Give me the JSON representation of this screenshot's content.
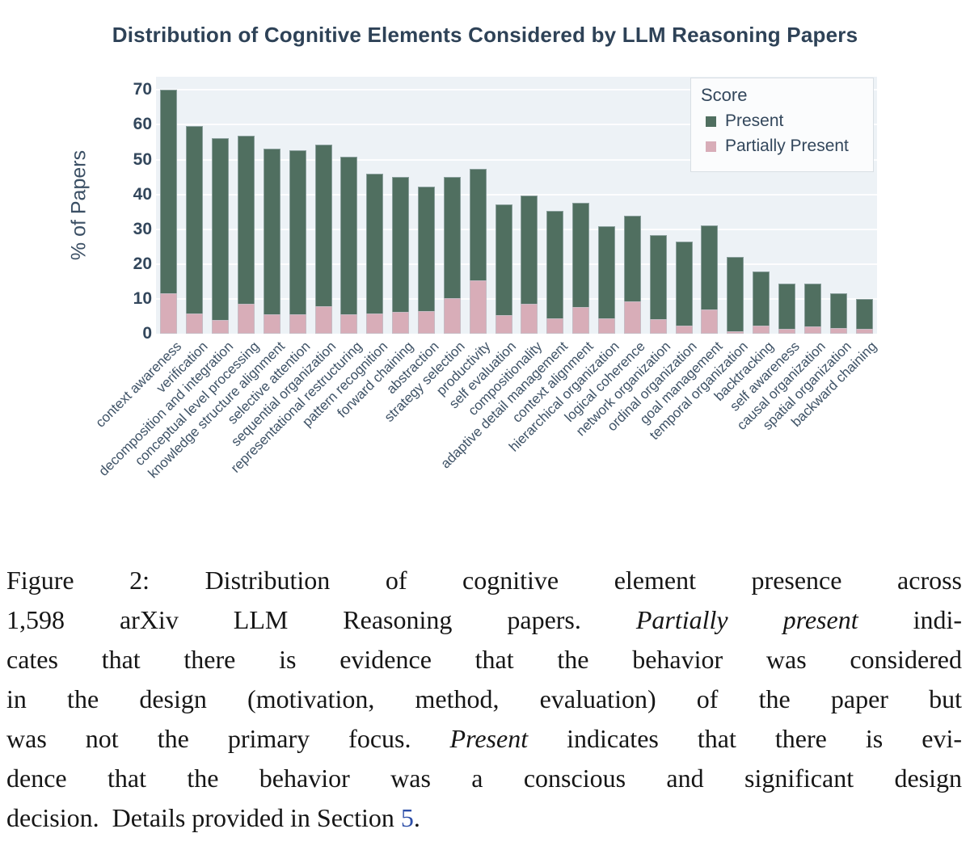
{
  "chart_data": {
    "type": "bar",
    "stacked": true,
    "title": "Distribution of Cognitive Elements Considered by LLM Reasoning Papers",
    "xlabel": "",
    "ylabel": "% of Papers",
    "ylim": [
      0,
      70
    ],
    "yticks": [
      0,
      10,
      20,
      30,
      40,
      50,
      60,
      70
    ],
    "grid": "horizontal",
    "legend_title": "Score",
    "legend_position": "top-right",
    "stack_order_bottom_to_top": [
      "Partially Present",
      "Present"
    ],
    "categories": [
      "context awareness",
      "verification",
      "decomposition and integration",
      "conceptual level processing",
      "knowledge structure alignment",
      "selective attention",
      "sequential organization",
      "representational restructuring",
      "pattern recognition",
      "forward chaining",
      "abstraction",
      "strategy selection",
      "productivity",
      "self evaluation",
      "compositionality",
      "adaptive detail management",
      "context alignment",
      "hierarchical organization",
      "logical coherence",
      "network organization",
      "ordinal organization",
      "goal management",
      "temporal organization",
      "backtracking",
      "self awareness",
      "causal organization",
      "spatial organization",
      "backward chaining"
    ],
    "series": [
      {
        "name": "Present",
        "color": "#506f60",
        "values": [
          58.5,
          53.8,
          52.2,
          48.4,
          47.7,
          47.2,
          46.4,
          45.4,
          40.2,
          38.9,
          35.6,
          34.9,
          32.1,
          31.7,
          31.2,
          30.8,
          30.0,
          26.6,
          24.6,
          24.3,
          24.2,
          24.2,
          21.5,
          15.4,
          13.0,
          12.3,
          10.0,
          8.4
        ]
      },
      {
        "name": "Partially Present",
        "color": "#d8adb8",
        "values": [
          11.5,
          5.8,
          3.9,
          8.5,
          5.5,
          5.5,
          7.8,
          5.5,
          5.8,
          6.2,
          6.6,
          10.2,
          15.3,
          5.4,
          8.5,
          4.4,
          7.6,
          4.3,
          9.3,
          4.1,
          2.3,
          7.0,
          0.6,
          2.4,
          1.5,
          2.2,
          1.6,
          1.5
        ]
      }
    ]
  },
  "colors": {
    "present": "#506f60",
    "partially_present": "#d8adb8",
    "title_text": "#2e4257",
    "axis_text": "#33475c",
    "plot_background": "#edf2f6",
    "section_link": "#2e4fa8"
  },
  "caption": {
    "figure_label": "Figure 2:",
    "lines": [
      [
        {
          "t": "Figure 2:  Distribution of cognitive element presence across"
        }
      ],
      [
        {
          "t": "1,598 arXiv LLM Reasoning papers.  "
        },
        {
          "t": "Partially present",
          "style": "italic"
        },
        {
          "t": " indi-"
        }
      ],
      [
        {
          "t": "cates that there is evidence that the behavior was considered"
        }
      ],
      [
        {
          "t": "in the design (motivation, method, evaluation) of the paper but"
        }
      ],
      [
        {
          "t": "was not the primary focus.  "
        },
        {
          "t": "Present",
          "style": "italic"
        },
        {
          "t": " indicates that there is evi-"
        }
      ],
      [
        {
          "t": "dence that the behavior was a conscious and significant design"
        }
      ],
      [
        {
          "t": "decision.  Details provided in Section "
        },
        {
          "t": "5",
          "style": "link"
        },
        {
          "t": "."
        }
      ]
    ]
  }
}
